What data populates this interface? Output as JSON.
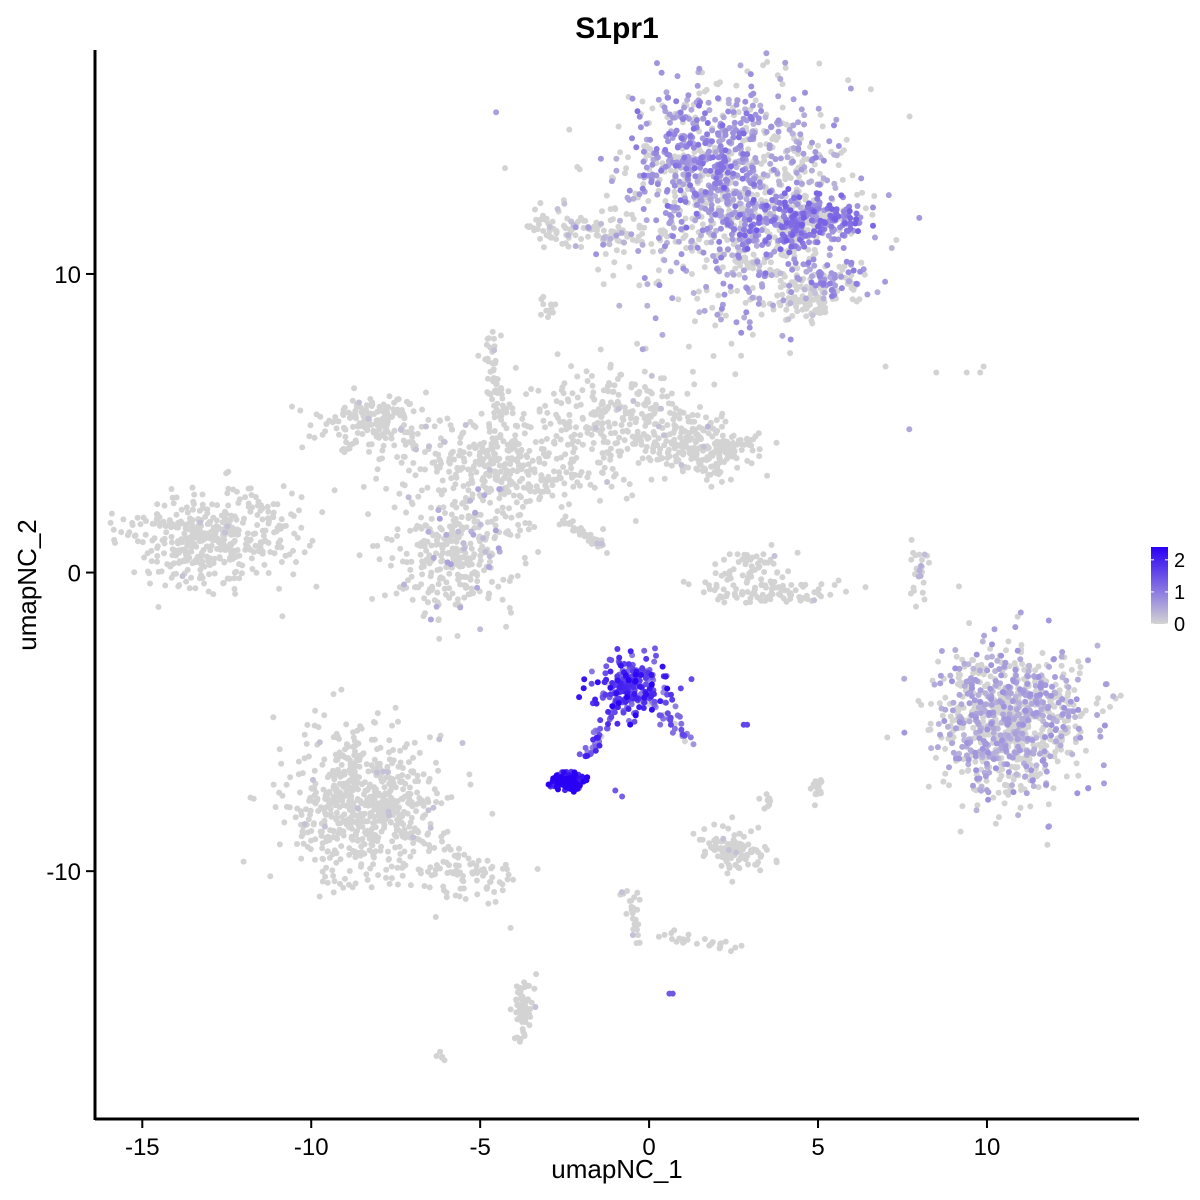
{
  "chart_data": {
    "type": "scatter",
    "title": "S1pr1",
    "xlabel": "umapNC_1",
    "ylabel": "umapNC_2",
    "xlim": [
      -16.4,
      14.5
    ],
    "ylim": [
      -18.3,
      17.5
    ],
    "x_ticks": [
      -15,
      -10,
      -5,
      0,
      5,
      10
    ],
    "x_tick_labels": [
      "-15",
      "-10",
      "-5",
      "0",
      "5",
      "10"
    ],
    "y_ticks": [
      -10,
      0,
      10
    ],
    "y_tick_labels": [
      "-10",
      "0",
      "10"
    ],
    "grid": false,
    "legend_position": "right",
    "color_scale": {
      "low_color": "#d3d3d3",
      "high_color": "#2a00f5",
      "min": 0,
      "max": 2.4,
      "ticks": [
        0,
        1,
        2
      ],
      "tick_labels": [
        "0",
        "1",
        "2"
      ]
    },
    "clusters": [
      {
        "cx": 2.6,
        "cy": 12.6,
        "sx": 1.7,
        "sy": 2.0,
        "n": 900,
        "expr": 0.55,
        "p": 0.55
      },
      {
        "cx": 1.5,
        "cy": 14.0,
        "sx": 0.9,
        "sy": 0.9,
        "n": 250,
        "expr": 0.8,
        "p": 0.75
      },
      {
        "cx": 3.8,
        "cy": 11.7,
        "sx": 0.9,
        "sy": 0.6,
        "n": 220,
        "expr": 0.9,
        "p": 0.75
      },
      {
        "cx": 5.2,
        "cy": 11.8,
        "sx": 0.6,
        "sy": 0.3,
        "n": 140,
        "expr": 0.9,
        "p": 0.7
      },
      {
        "cx": 5.4,
        "cy": 9.8,
        "sx": 0.6,
        "sy": 0.3,
        "n": 80,
        "expr": 0.7,
        "p": 0.55
      },
      {
        "cx": 4.6,
        "cy": 9.0,
        "sx": 0.5,
        "sy": 0.3,
        "n": 70,
        "expr": 0.1,
        "p": 0.05
      },
      {
        "cx": -3.0,
        "cy": 11.7,
        "sx": 0.35,
        "sy": 0.35,
        "n": 40,
        "expr": 0.1,
        "p": 0.05
      },
      {
        "cx": -1.0,
        "cy": 11.2,
        "sx": 1.2,
        "sy": 0.25,
        "n": 60,
        "expr": 0.3,
        "p": 0.25
      },
      {
        "cx": -3.0,
        "cy": 8.8,
        "sx": 0.12,
        "sy": 0.15,
        "n": 12,
        "expr": 0.0,
        "p": 0.0
      },
      {
        "cx": -13.0,
        "cy": 1.1,
        "sx": 1.3,
        "sy": 0.75,
        "n": 420,
        "expr": 0.05,
        "p": 0.01
      },
      {
        "cx": -8.2,
        "cy": 5.0,
        "sx": 0.8,
        "sy": 0.45,
        "n": 180,
        "expr": 0.05,
        "p": 0.02
      },
      {
        "cx": -4.3,
        "cy": 3.6,
        "sx": 1.5,
        "sy": 0.9,
        "n": 400,
        "expr": 0.05,
        "p": 0.02
      },
      {
        "cx": -0.8,
        "cy": 5.3,
        "sx": 1.1,
        "sy": 0.8,
        "n": 250,
        "expr": 0.05,
        "p": 0.02
      },
      {
        "cx": 1.6,
        "cy": 4.1,
        "sx": 0.9,
        "sy": 0.5,
        "n": 220,
        "expr": 0.05,
        "p": 0.02
      },
      {
        "cx": -5.8,
        "cy": 0.6,
        "sx": 0.9,
        "sy": 1.0,
        "n": 320,
        "expr": 0.4,
        "p": 0.12
      },
      {
        "cx": -4.5,
        "cy": 6.0,
        "sx": 0.2,
        "sy": 0.9,
        "n": 30,
        "expr": 0.05,
        "p": 0.02
      },
      {
        "cx": 3.0,
        "cy": 0.1,
        "sx": 0.6,
        "sy": 0.45,
        "n": 60,
        "expr": 0.05,
        "p": 0.02
      },
      {
        "cx": 3.6,
        "cy": -0.7,
        "sx": 1.0,
        "sy": 0.2,
        "n": 80,
        "expr": 0.05,
        "p": 0.02
      },
      {
        "cx": 8.0,
        "cy": 0.3,
        "sx": 0.15,
        "sy": 0.6,
        "n": 25,
        "expr": 0.3,
        "p": 0.2
      },
      {
        "cx": 10.7,
        "cy": -5.0,
        "sx": 1.1,
        "sy": 1.2,
        "n": 900,
        "expr": 0.5,
        "p": 0.45
      },
      {
        "cx": -0.5,
        "cy": -3.8,
        "sx": 0.55,
        "sy": 0.45,
        "n": 230,
        "expr": 1.6,
        "p": 0.95
      },
      {
        "cx": -2.4,
        "cy": -7.0,
        "sx": 0.22,
        "sy": 0.13,
        "n": 140,
        "expr": 2.1,
        "p": 1.0
      },
      {
        "cx": -8.4,
        "cy": -7.8,
        "sx": 1.1,
        "sy": 1.2,
        "n": 650,
        "expr": 0.05,
        "p": 0.03
      },
      {
        "cx": -5.5,
        "cy": -10.2,
        "sx": 0.9,
        "sy": 0.35,
        "n": 60,
        "expr": 0.05,
        "p": 0.02
      },
      {
        "cx": 2.5,
        "cy": -9.2,
        "sx": 0.45,
        "sy": 0.4,
        "n": 110,
        "expr": 0.05,
        "p": 0.02
      },
      {
        "cx": 5.0,
        "cy": -7.3,
        "sx": 0.1,
        "sy": 0.2,
        "n": 20,
        "expr": 0.0,
        "p": 0.0
      },
      {
        "cx": 3.5,
        "cy": -7.6,
        "sx": 0.1,
        "sy": 0.15,
        "n": 10,
        "expr": 0.0,
        "p": 0.0
      },
      {
        "cx": -3.7,
        "cy": -14.7,
        "sx": 0.2,
        "sy": 0.55,
        "n": 40,
        "expr": 0.1,
        "p": 0.05
      },
      {
        "cx": -6.1,
        "cy": -16.2,
        "sx": 0.08,
        "sy": 0.08,
        "n": 5,
        "expr": 0.0,
        "p": 0.0
      }
    ],
    "paths": [
      {
        "x0": -0.9,
        "y0": -4.3,
        "x1": -1.8,
        "y1": -6.2,
        "n": 40,
        "w": 0.12,
        "expr": 1.4,
        "p": 0.9
      },
      {
        "x0": 0.2,
        "y0": -4.2,
        "x1": 1.2,
        "y1": -5.6,
        "n": 30,
        "w": 0.12,
        "expr": 1.1,
        "p": 0.8
      },
      {
        "x0": -4.8,
        "y0": 8.0,
        "x1": -4.4,
        "y1": 5.2,
        "n": 30,
        "w": 0.12,
        "expr": 0.05,
        "p": 0.02
      },
      {
        "x0": -2.4,
        "y0": 1.7,
        "x1": -1.3,
        "y1": 0.8,
        "n": 40,
        "w": 0.08,
        "expr": 0.1,
        "p": 0.05
      },
      {
        "x0": -0.6,
        "y0": -10.4,
        "x1": -0.3,
        "y1": -12.4,
        "n": 25,
        "w": 0.12,
        "expr": 0.1,
        "p": 0.05
      },
      {
        "x0": 0.2,
        "y0": -12.1,
        "x1": 2.6,
        "y1": -12.6,
        "n": 25,
        "w": 0.12,
        "expr": 0.05,
        "p": 0.02
      },
      {
        "x0": -0.6,
        "y0": 11.4,
        "x1": -2.2,
        "y1": 11.6,
        "n": 30,
        "w": 0.12,
        "expr": 0.4,
        "p": 0.3
      },
      {
        "x0": 2.5,
        "y0": 10.6,
        "x1": 4.8,
        "y1": 9.4,
        "n": 35,
        "w": 0.12,
        "expr": 0.2,
        "p": 0.15
      },
      {
        "x0": -11.9,
        "y0": 2.7,
        "x1": -10.8,
        "y1": 1.4,
        "n": 20,
        "w": 0.1,
        "expr": 0.0,
        "p": 0.0
      },
      {
        "x0": -7.6,
        "y0": -8.3,
        "x1": -4.3,
        "y1": -10.4,
        "n": 40,
        "w": 0.15,
        "expr": 0.05,
        "p": 0.02
      },
      {
        "x0": -3.9,
        "y0": -13.8,
        "x1": -3.6,
        "y1": -15.4,
        "n": 20,
        "w": 0.1,
        "expr": 0.1,
        "p": 0.05
      }
    ],
    "singles": [
      {
        "x": 7.0,
        "y": 6.9,
        "v": 0
      },
      {
        "x": 8.5,
        "y": 6.7,
        "v": 0
      },
      {
        "x": 9.4,
        "y": 6.7,
        "v": 0
      },
      {
        "x": 9.8,
        "y": 6.7,
        "v": 0
      },
      {
        "x": 9.9,
        "y": 6.9,
        "v": 0
      },
      {
        "x": 7.7,
        "y": 4.8,
        "v": 0.5
      },
      {
        "x": 2.8,
        "y": -5.1,
        "v": 1.6
      },
      {
        "x": 2.9,
        "y": -5.1,
        "v": 1.6
      },
      {
        "x": 0.6,
        "y": -14.1,
        "v": 1.4
      },
      {
        "x": 0.7,
        "y": -14.1,
        "v": 1.4
      },
      {
        "x": -1.0,
        "y": -7.3,
        "v": 1.4
      },
      {
        "x": -0.8,
        "y": -7.5,
        "v": 1.3
      },
      {
        "x": 5.1,
        "y": -7.0,
        "v": 0
      },
      {
        "x": -4.1,
        "y": -11.9,
        "v": 0
      },
      {
        "x": -0.1,
        "y": 7.5,
        "v": 0
      }
    ]
  }
}
